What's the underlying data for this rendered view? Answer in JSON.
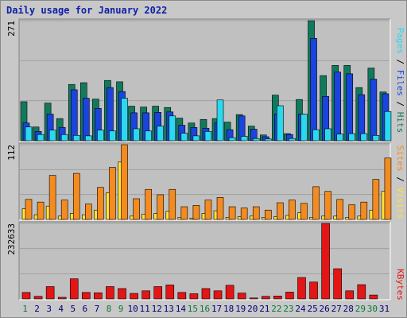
{
  "title": "Daily usage for January 2022",
  "colors": {
    "hits": "#117a5c",
    "files": "#1a44e0",
    "pages": "#29d9f0",
    "visits": "#ffe23a",
    "sites": "#f58b1e",
    "kbytes": "#e31515",
    "weekend_label": "#0a7a3a",
    "weekday_label": "#00007a",
    "panel_bg": "#c0c0c0",
    "frame_bg": "#c8c8c8"
  },
  "chart_data": [
    {
      "type": "bar",
      "panel": "hits-files-pages",
      "y_max_label": "271",
      "ylim": [
        0,
        271
      ],
      "legend": [
        "Pages",
        "Files",
        "Hits"
      ],
      "categories": [
        "1",
        "2",
        "3",
        "4",
        "5",
        "6",
        "7",
        "8",
        "9",
        "10",
        "11",
        "12",
        "13",
        "14",
        "15",
        "16",
        "17",
        "18",
        "19",
        "20",
        "21",
        "22",
        "23",
        "24",
        "25",
        "26",
        "27",
        "28",
        "29",
        "30",
        "31"
      ],
      "series": [
        {
          "name": "Hits",
          "values": [
            88,
            31,
            85,
            50,
            127,
            131,
            94,
            136,
            133,
            78,
            76,
            78,
            75,
            51,
            40,
            48,
            50,
            42,
            59,
            33,
            13,
            103,
            16,
            93,
            271,
            147,
            170,
            170,
            120,
            164,
            110
          ]
        },
        {
          "name": "Files",
          "values": [
            40,
            21,
            60,
            30,
            115,
            96,
            73,
            120,
            111,
            63,
            63,
            64,
            65,
            35,
            30,
            28,
            40,
            25,
            56,
            26,
            9,
            60,
            14,
            60,
            231,
            100,
            155,
            151,
            104,
            139,
            106
          ]
        },
        {
          "name": "Pages",
          "values": [
            31,
            14,
            24,
            14,
            12,
            11,
            24,
            22,
            96,
            27,
            22,
            33,
            56,
            17,
            11,
            21,
            92,
            7,
            10,
            5,
            4,
            79,
            5,
            60,
            25,
            27,
            15,
            16,
            16,
            12,
            66
          ]
        }
      ]
    },
    {
      "type": "bar",
      "panel": "visits-sites",
      "y_max_label": "112",
      "ylim": [
        0,
        112
      ],
      "legend": [
        "Sites",
        "Visits"
      ],
      "categories": [
        "1",
        "2",
        "3",
        "4",
        "5",
        "6",
        "7",
        "8",
        "9",
        "10",
        "11",
        "12",
        "13",
        "14",
        "15",
        "16",
        "17",
        "18",
        "19",
        "20",
        "21",
        "22",
        "23",
        "24",
        "25",
        "26",
        "27",
        "28",
        "29",
        "30",
        "31"
      ],
      "series": [
        {
          "name": "Visits",
          "values": [
            16,
            7,
            20,
            5,
            9,
            7,
            14,
            40,
            86,
            5,
            8,
            9,
            12,
            3,
            2,
            9,
            13,
            3,
            4,
            5,
            3,
            4,
            6,
            10,
            3,
            5,
            5,
            3,
            5,
            14,
            42
          ]
        },
        {
          "name": "Sites",
          "values": [
            30,
            26,
            66,
            29,
            69,
            23,
            48,
            78,
            112,
            31,
            45,
            37,
            45,
            19,
            21,
            29,
            33,
            19,
            17,
            19,
            14,
            25,
            29,
            24,
            49,
            42,
            30,
            22,
            26,
            60,
            92
          ]
        }
      ]
    },
    {
      "type": "bar",
      "panel": "kbytes",
      "y_max_label": "232633",
      "ylim": [
        0,
        232633
      ],
      "legend": [
        "KBytes"
      ],
      "categories": [
        "1",
        "2",
        "3",
        "4",
        "5",
        "6",
        "7",
        "8",
        "9",
        "10",
        "11",
        "12",
        "13",
        "14",
        "15",
        "16",
        "17",
        "18",
        "19",
        "20",
        "21",
        "22",
        "23",
        "24",
        "25",
        "26",
        "27",
        "28",
        "29",
        "30",
        "31"
      ],
      "series": [
        {
          "name": "KBytes",
          "values": [
            20000,
            8000,
            38000,
            5000,
            62000,
            20000,
            19000,
            38000,
            32000,
            17000,
            25000,
            38000,
            43000,
            20000,
            16000,
            32000,
            25000,
            42000,
            18000,
            3000,
            8000,
            9000,
            21000,
            66000,
            52000,
            232633,
            93000,
            25000,
            44000,
            12000,
            0
          ]
        }
      ]
    }
  ],
  "weekend_days": [
    1,
    8,
    9,
    15,
    16,
    22,
    23,
    29,
    30
  ]
}
